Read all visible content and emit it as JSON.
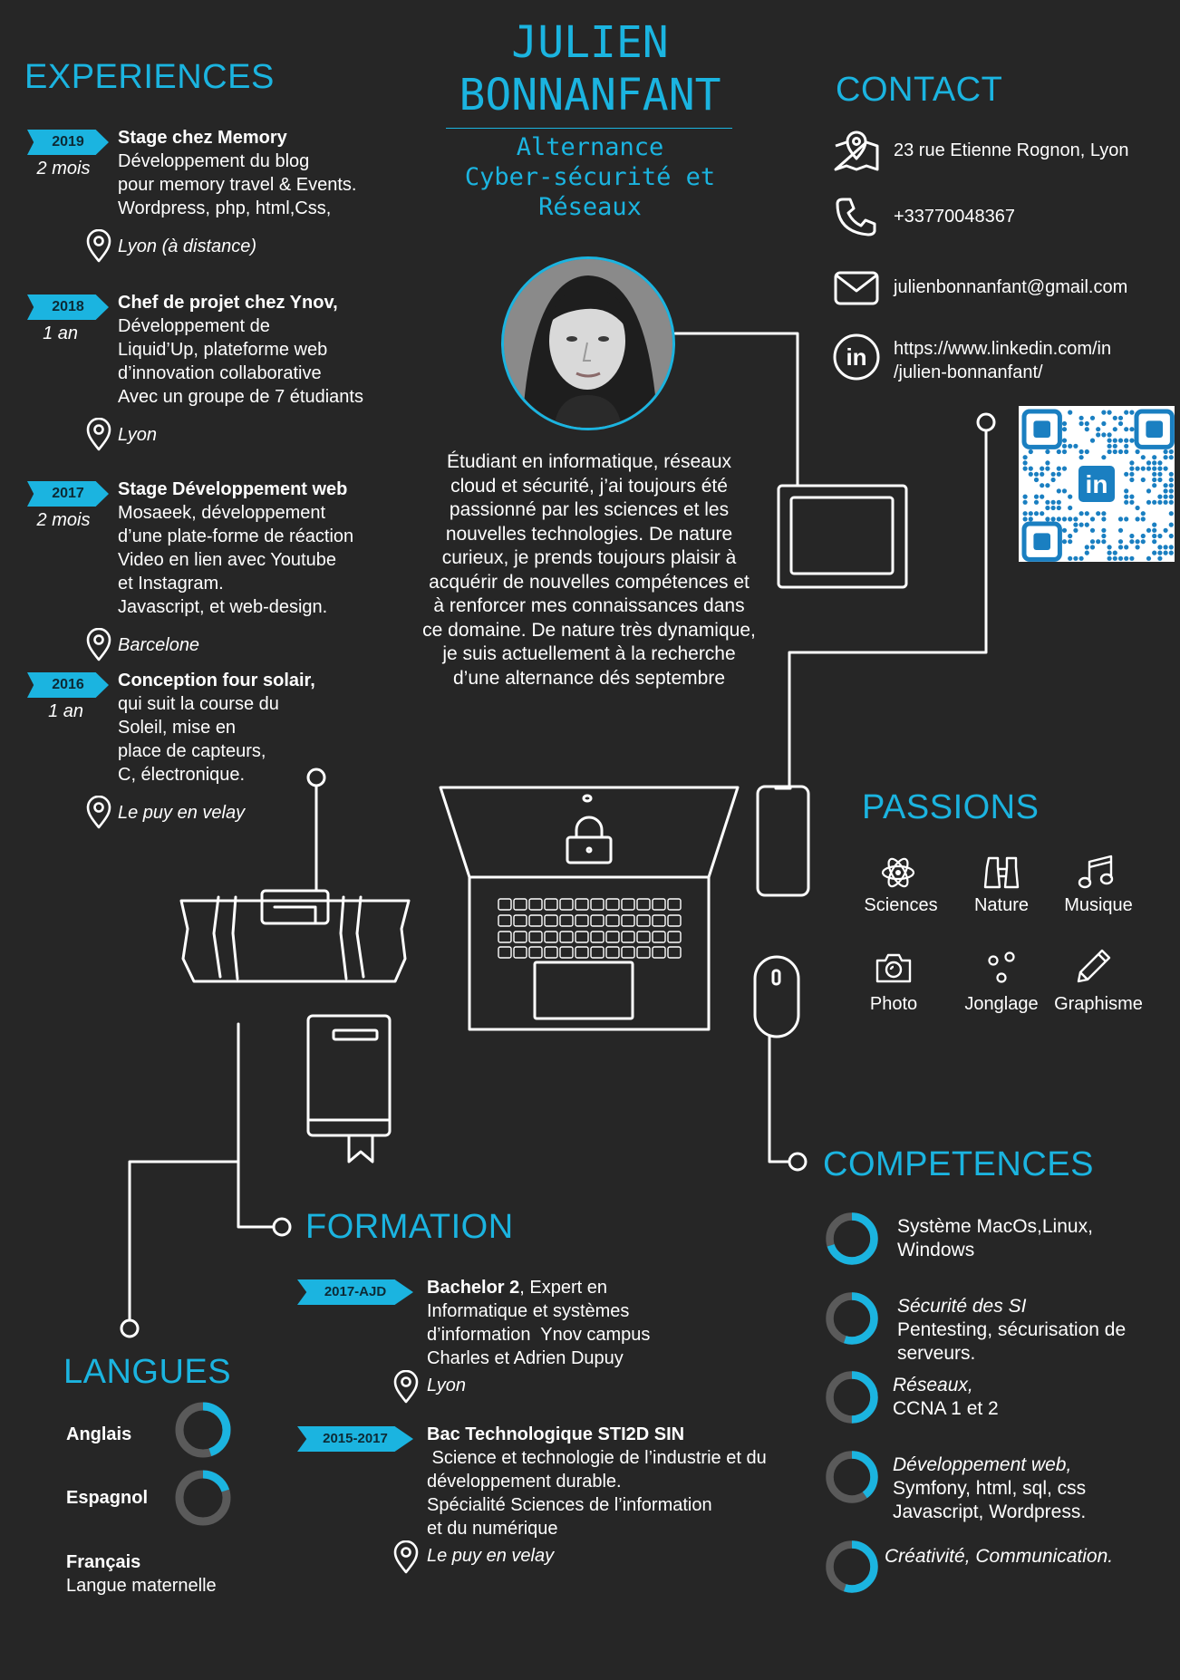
{
  "header": {
    "first_name": "JULIEN",
    "last_name": "BONNANFANT",
    "subtitle_line1": "Alternance",
    "subtitle_line2": "Cyber-sécurité et",
    "subtitle_line3": "Réseaux"
  },
  "bio": "Étudiant en informatique, réseaux cloud et sécurité, j’ai toujours été passionné par les sciences et les nouvelles technologies. De nature curieux, je prends toujours plaisir à acquérir de nouvelles compétences et à renforcer mes connaissances dans ce domaine. De nature très dynamique, je suis actuellement à la recherche d’une alternance dés septembre",
  "experiences": {
    "title": "EXPERIENCES",
    "items": [
      {
        "year": "2019",
        "duration": "2 mois",
        "title": "Stage chez Memory",
        "lines": [
          "Développement du blog",
          "pour memory travel & Events.",
          "Wordpress, php, html,Css,"
        ],
        "location": "Lyon (à distance)"
      },
      {
        "year": "2018",
        "duration": "1 an",
        "title": "Chef de projet chez Ynov,",
        "lines": [
          "Développement de",
          "Liquid’Up, plateforme web",
          "d’innovation collaborative",
          "Avec un groupe de 7 étudiants"
        ],
        "location": "Lyon"
      },
      {
        "year": "2017",
        "duration": "2 mois",
        "title": "Stage Développement web",
        "lines": [
          "Mosaeek, développement",
          "d’une plate-forme de réaction",
          "Video en lien avec Youtube",
          "et Instagram.",
          "Javascript, et  web-design."
        ],
        "location": "Barcelone"
      },
      {
        "year": "2016",
        "duration": "1 an",
        "title": "Conception four solair,",
        "lines": [
          "qui suit la course du",
          "Soleil, mise en",
          "place de capteurs,",
          "C, électronique."
        ],
        "location": "Le puy en velay"
      }
    ]
  },
  "contact": {
    "title": "CONTACT",
    "address": "23 rue Etienne Rognon, Lyon",
    "phone": "+33770048367",
    "email": "julienbonnanfant@gmail.com",
    "linkedin_line1": "https://www.linkedin.com/in",
    "linkedin_line2": "/julien-bonnanfant/"
  },
  "passions": {
    "title": "PASSIONS",
    "items": [
      {
        "label": "Sciences",
        "icon": "atom-icon"
      },
      {
        "label": "Nature",
        "icon": "binoculars-icon"
      },
      {
        "label": "Musique",
        "icon": "music-note-icon"
      },
      {
        "label": "Photo",
        "icon": "camera-icon"
      },
      {
        "label": "Jonglage",
        "icon": "juggling-balls-icon"
      },
      {
        "label": "Graphisme",
        "icon": "pencil-icon"
      }
    ]
  },
  "formation": {
    "title": "FORMATION",
    "items": [
      {
        "period": "2017-AJD",
        "title": "Bachelor 2",
        "title_suffix": ", Expert en",
        "lines": [
          "Informatique et systèmes",
          "d’information  Ynov campus",
          "Charles et Adrien Dupuy"
        ],
        "location": "Lyon"
      },
      {
        "period": "2015-2017",
        "title": "Bac Technologique STI2D SIN",
        "title_suffix": "",
        "lines": [
          " Science et technologie de l’industrie et du",
          "développement durable.",
          "Spécialité Sciences de l’information",
          "et du numérique"
        ],
        "location": "Le puy en velay"
      }
    ]
  },
  "langues": {
    "title": "LANGUES",
    "items": [
      {
        "label": "Anglais",
        "level": 0.45
      },
      {
        "label": "Espagnol",
        "level": 0.2
      }
    ],
    "native_label": "Français",
    "native_note": "Langue maternelle"
  },
  "competences": {
    "title": "COMPETENCES",
    "items": [
      {
        "title": "",
        "lines": [
          "Système MacOs,Linux,",
          "Windows"
        ],
        "level": 0.7
      },
      {
        "title": "Sécurité des SI",
        "lines": [
          "Pentesting, sécurisation de",
          "serveurs."
        ],
        "level": 0.55
      },
      {
        "title": "Réseaux,",
        "lines": [
          "CCNA  1 et 2"
        ],
        "level": 0.5
      },
      {
        "title": "Développement web,",
        "lines": [
          "Symfony, html, sql, css",
          "Javascript, Wordpress."
        ],
        "level": 0.4
      },
      {
        "title": "Créativité, Communication.",
        "lines": [],
        "level": 0.55
      }
    ]
  },
  "colors": {
    "accent": "#1bb4e0",
    "background": "#262626",
    "ring_track": "#5a5a5a"
  }
}
